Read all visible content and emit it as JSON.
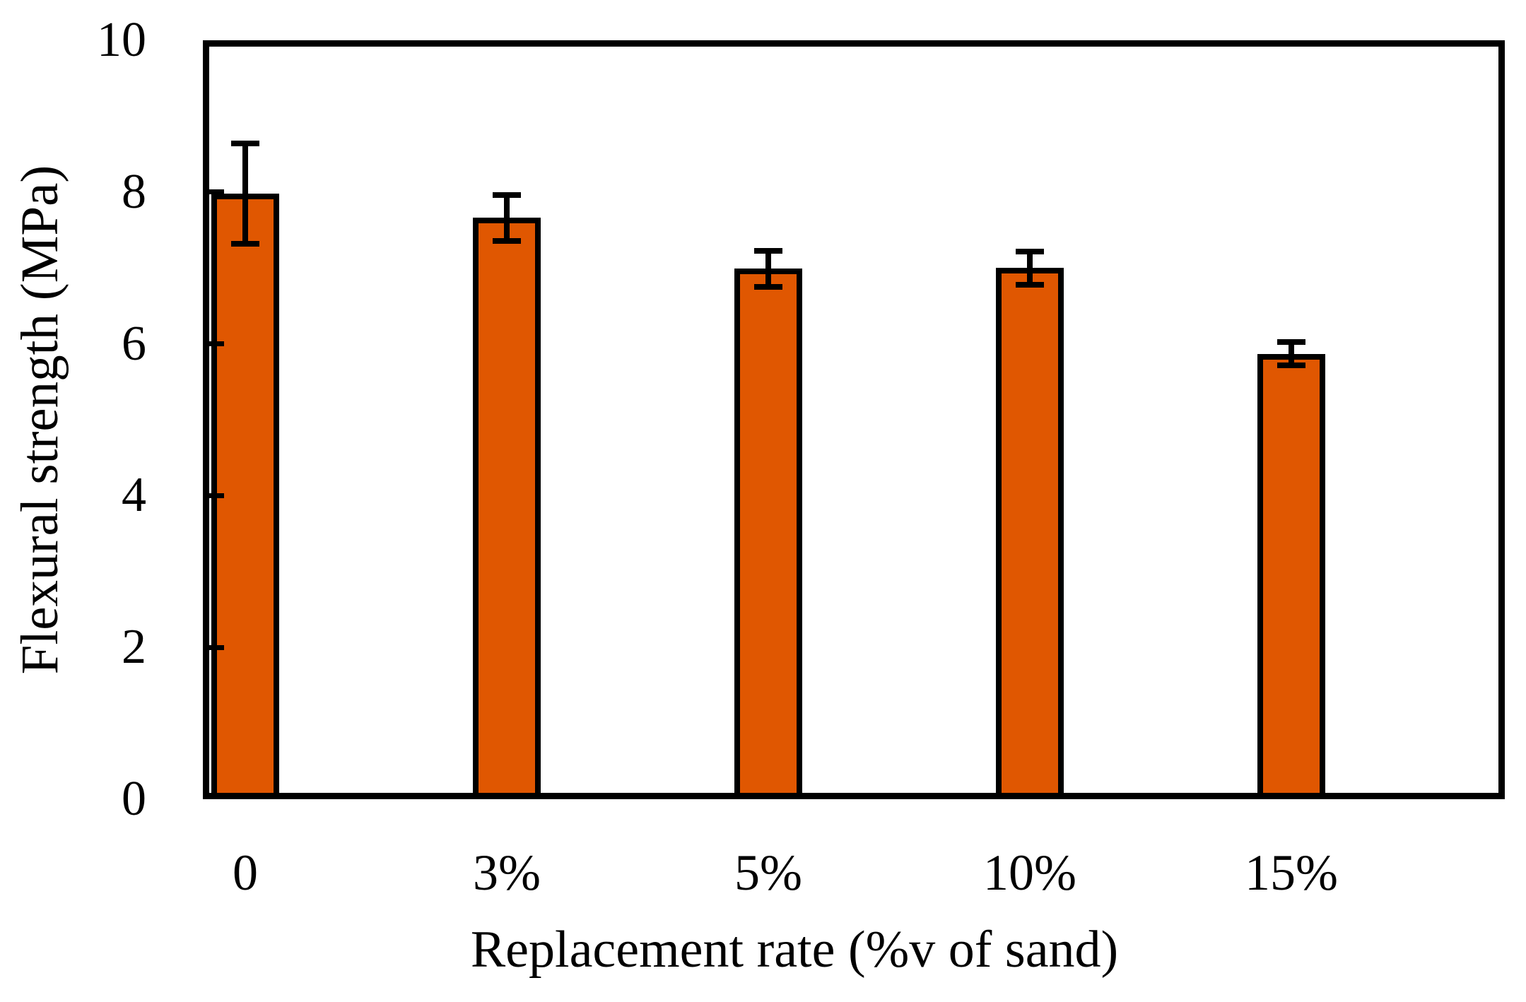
{
  "chart_data": {
    "type": "bar",
    "title": "",
    "xlabel": "Replacement rate (%v of sand)",
    "ylabel": "Flexural strength (MPa)",
    "categories": [
      "0",
      "3%",
      "5%",
      "10%",
      "15%"
    ],
    "values": [
      7.98,
      7.66,
      6.99,
      7.0,
      5.87
    ],
    "errors": [
      0.66,
      0.3,
      0.24,
      0.22,
      0.15
    ],
    "ylim": [
      0,
      10
    ],
    "yticks": [
      0,
      2,
      4,
      6,
      8,
      10
    ],
    "xlim_slots": 5,
    "grid": false,
    "legend": false,
    "bar_color": "#E05701",
    "bar_outline_color": "#000000",
    "error_bar_color": "#000000",
    "frame_color": "#000000",
    "background_color": "#FFFFFF"
  }
}
